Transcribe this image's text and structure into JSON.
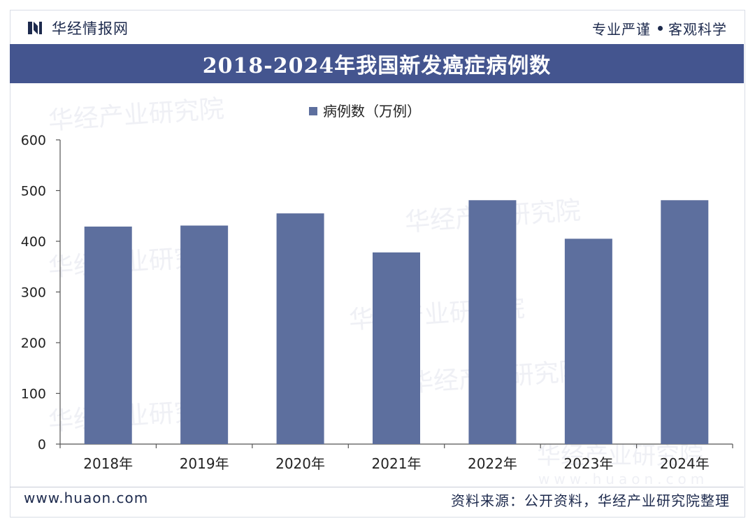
{
  "header": {
    "brand_name": "华经情报网",
    "slogan_left": "专业严谨",
    "slogan_right": "客观科学"
  },
  "chart_title": "2018-2024年我国新发癌症病例数",
  "chart_data": {
    "type": "bar",
    "title": "2018-2024年我国新发癌症病例数",
    "legend": [
      "病例数（万例）"
    ],
    "legend_position": "top-center",
    "categories": [
      "2018年",
      "2019年",
      "2020年",
      "2021年",
      "2022年",
      "2023年",
      "2024年"
    ],
    "series": [
      {
        "name": "病例数（万例）",
        "values": [
          429,
          431,
          455,
          378,
          481,
          405,
          481
        ]
      }
    ],
    "xlabel": "",
    "ylabel": "",
    "ylim": [
      0,
      600
    ],
    "yticks": [
      0,
      100,
      200,
      300,
      400,
      500,
      600
    ],
    "grid": false,
    "bar_color": "#5d6f9e"
  },
  "watermark": {
    "text": "华经产业研究院",
    "url": "www.huaon.com"
  },
  "footer": {
    "url": "www.huaon.com",
    "source": "资料来源：公开资料，华经产业研究院整理"
  }
}
